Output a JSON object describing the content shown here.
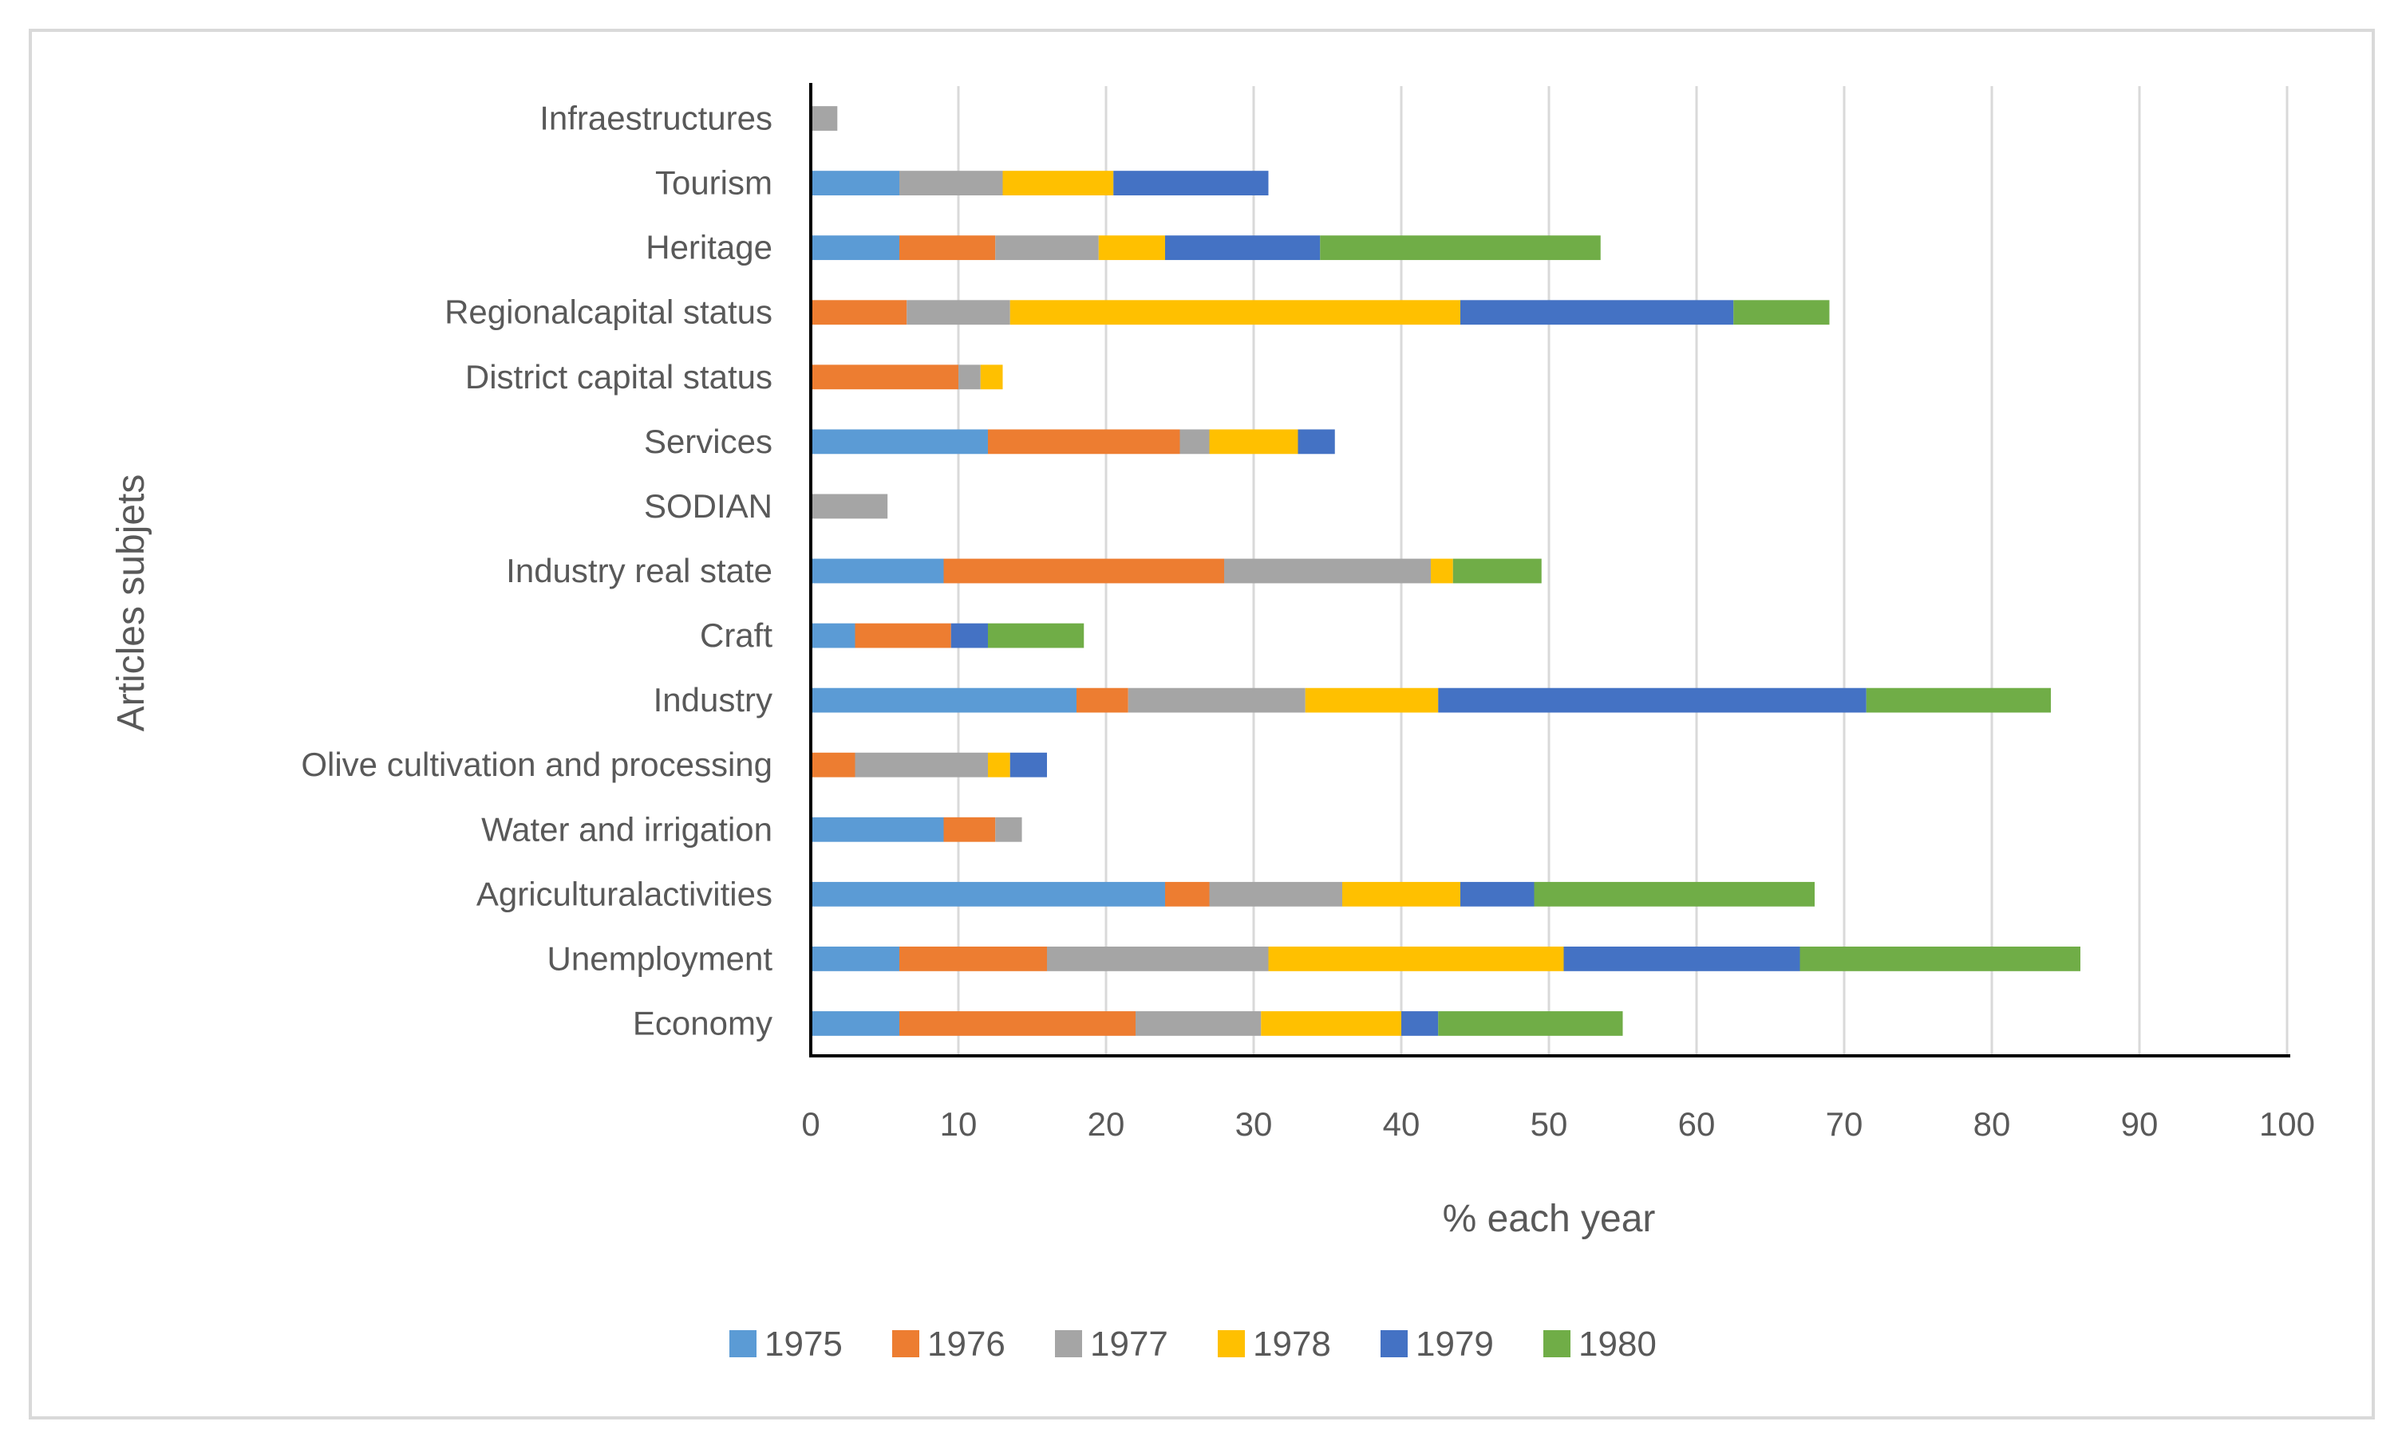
{
  "chart_data": {
    "type": "bar",
    "orientation": "horizontal",
    "stacked": true,
    "title": "",
    "xlabel": "% each year",
    "ylabel": "Articles subjets",
    "xlim": [
      0,
      100
    ],
    "xticks": [
      0,
      10,
      20,
      30,
      40,
      50,
      60,
      70,
      80,
      90,
      100
    ],
    "grid": "vertical",
    "legend_position": "bottom",
    "categories": [
      "Infraestructures",
      "Tourism",
      "Heritage",
      "Regionalcapital status",
      "District capital status",
      "Services",
      "SODIAN",
      "Industry real state",
      "Craft",
      "Industry",
      "Olive cultivation and processing",
      "Water and irrigation",
      "Agriculturalactivities",
      "Unemployment",
      "Economy"
    ],
    "series": [
      {
        "name": "1975",
        "color": "#5B9BD5",
        "values": [
          0,
          6,
          6,
          0,
          0,
          12,
          0,
          9,
          3,
          18,
          0,
          9,
          24,
          6,
          6
        ]
      },
      {
        "name": "1976",
        "color": "#ED7D31",
        "values": [
          0,
          0,
          6.5,
          6.5,
          10,
          13,
          0,
          19,
          6.5,
          3.5,
          3,
          3.5,
          3,
          10,
          16
        ]
      },
      {
        "name": "1977",
        "color": "#A5A5A5",
        "values": [
          1.8,
          7,
          7,
          7,
          1.5,
          2,
          5.2,
          14,
          0,
          12,
          9,
          1.8,
          9,
          15,
          8.5
        ]
      },
      {
        "name": "1978",
        "color": "#FFC000",
        "values": [
          0,
          7.5,
          4.5,
          30.5,
          1.5,
          6,
          0,
          1.5,
          0,
          9,
          1.5,
          0,
          8,
          20,
          9.5
        ]
      },
      {
        "name": "1979",
        "color": "#4472C4",
        "values": [
          0,
          10.5,
          10.5,
          18.5,
          0,
          2.5,
          0,
          0,
          2.5,
          29,
          2.5,
          0,
          5,
          16,
          2.5
        ]
      },
      {
        "name": "1980",
        "color": "#70AD47",
        "values": [
          0,
          0,
          19,
          6.5,
          0,
          0,
          0,
          6,
          6.5,
          12.5,
          0,
          0,
          19,
          19,
          12.5
        ]
      }
    ]
  }
}
